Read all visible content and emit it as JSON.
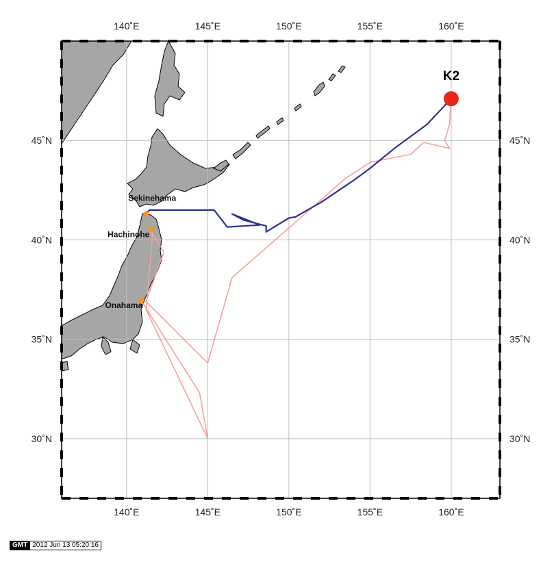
{
  "map": {
    "lon_range": [
      136,
      163
    ],
    "lat_range": [
      27,
      50
    ],
    "lon_ticks": [
      140,
      145,
      150,
      155,
      160
    ],
    "lat_ticks": [
      30,
      35,
      40,
      45
    ],
    "lon_tick_labels": [
      "140˚E",
      "145˚E",
      "150˚E",
      "155˚E",
      "160˚E"
    ],
    "lat_tick_labels": [
      "30˚N",
      "35˚N",
      "40˚N",
      "45˚N"
    ],
    "grid": true,
    "colors": {
      "land": "#a6a6a6",
      "coastline": "#000000",
      "grid": "#bdbdbd",
      "outbound_track": "#2e3192",
      "return_track": "#f4a0a0",
      "port_marker": "#f7941d",
      "station_marker": "#e8261c"
    }
  },
  "ports": [
    {
      "name": "Sekinehama",
      "lon": 141.2,
      "lat": 41.3
    },
    {
      "name": "Hachinohe",
      "lon": 141.5,
      "lat": 40.55
    },
    {
      "name": "Onahama",
      "lon": 140.9,
      "lat": 36.95
    }
  ],
  "station": {
    "name": "K2",
    "lon": 160.0,
    "lat": 47.1
  },
  "tracks": {
    "outbound": {
      "color_key": "outbound_track",
      "points": [
        [
          141.2,
          41.3
        ],
        [
          141.4,
          41.5
        ],
        [
          145.4,
          41.5
        ],
        [
          146.2,
          40.65
        ],
        [
          148.2,
          40.75
        ],
        [
          146.5,
          41.3
        ],
        [
          147.2,
          41.0
        ],
        [
          148.6,
          40.7
        ],
        [
          148.6,
          40.4
        ],
        [
          150.0,
          41.1
        ],
        [
          150.4,
          41.15
        ],
        [
          152.0,
          41.9
        ],
        [
          154.0,
          43.0
        ],
        [
          155.0,
          43.6
        ],
        [
          156.5,
          44.6
        ],
        [
          158.5,
          45.8
        ],
        [
          160.0,
          47.1
        ]
      ]
    },
    "return": {
      "color_key": "return_track",
      "points": [
        [
          160.0,
          47.1
        ],
        [
          159.9,
          45.8
        ],
        [
          159.6,
          45.0
        ],
        [
          159.9,
          44.6
        ],
        [
          158.3,
          44.9
        ],
        [
          157.5,
          44.3
        ],
        [
          155.0,
          43.9
        ],
        [
          153.5,
          43.1
        ],
        [
          146.5,
          38.1
        ],
        [
          145.0,
          33.8
        ],
        [
          141.2,
          36.9
        ],
        [
          142.3,
          39.4
        ],
        [
          141.4,
          40.6
        ],
        [
          141.6,
          40.2
        ],
        [
          141.2,
          36.5
        ],
        [
          145.0,
          30.0
        ],
        [
          144.5,
          32.3
        ],
        [
          140.9,
          36.95
        ]
      ]
    }
  },
  "gmt_stamp": {
    "logo": "GMT",
    "timestamp": "2012 Jun 13 05:20:16"
  }
}
